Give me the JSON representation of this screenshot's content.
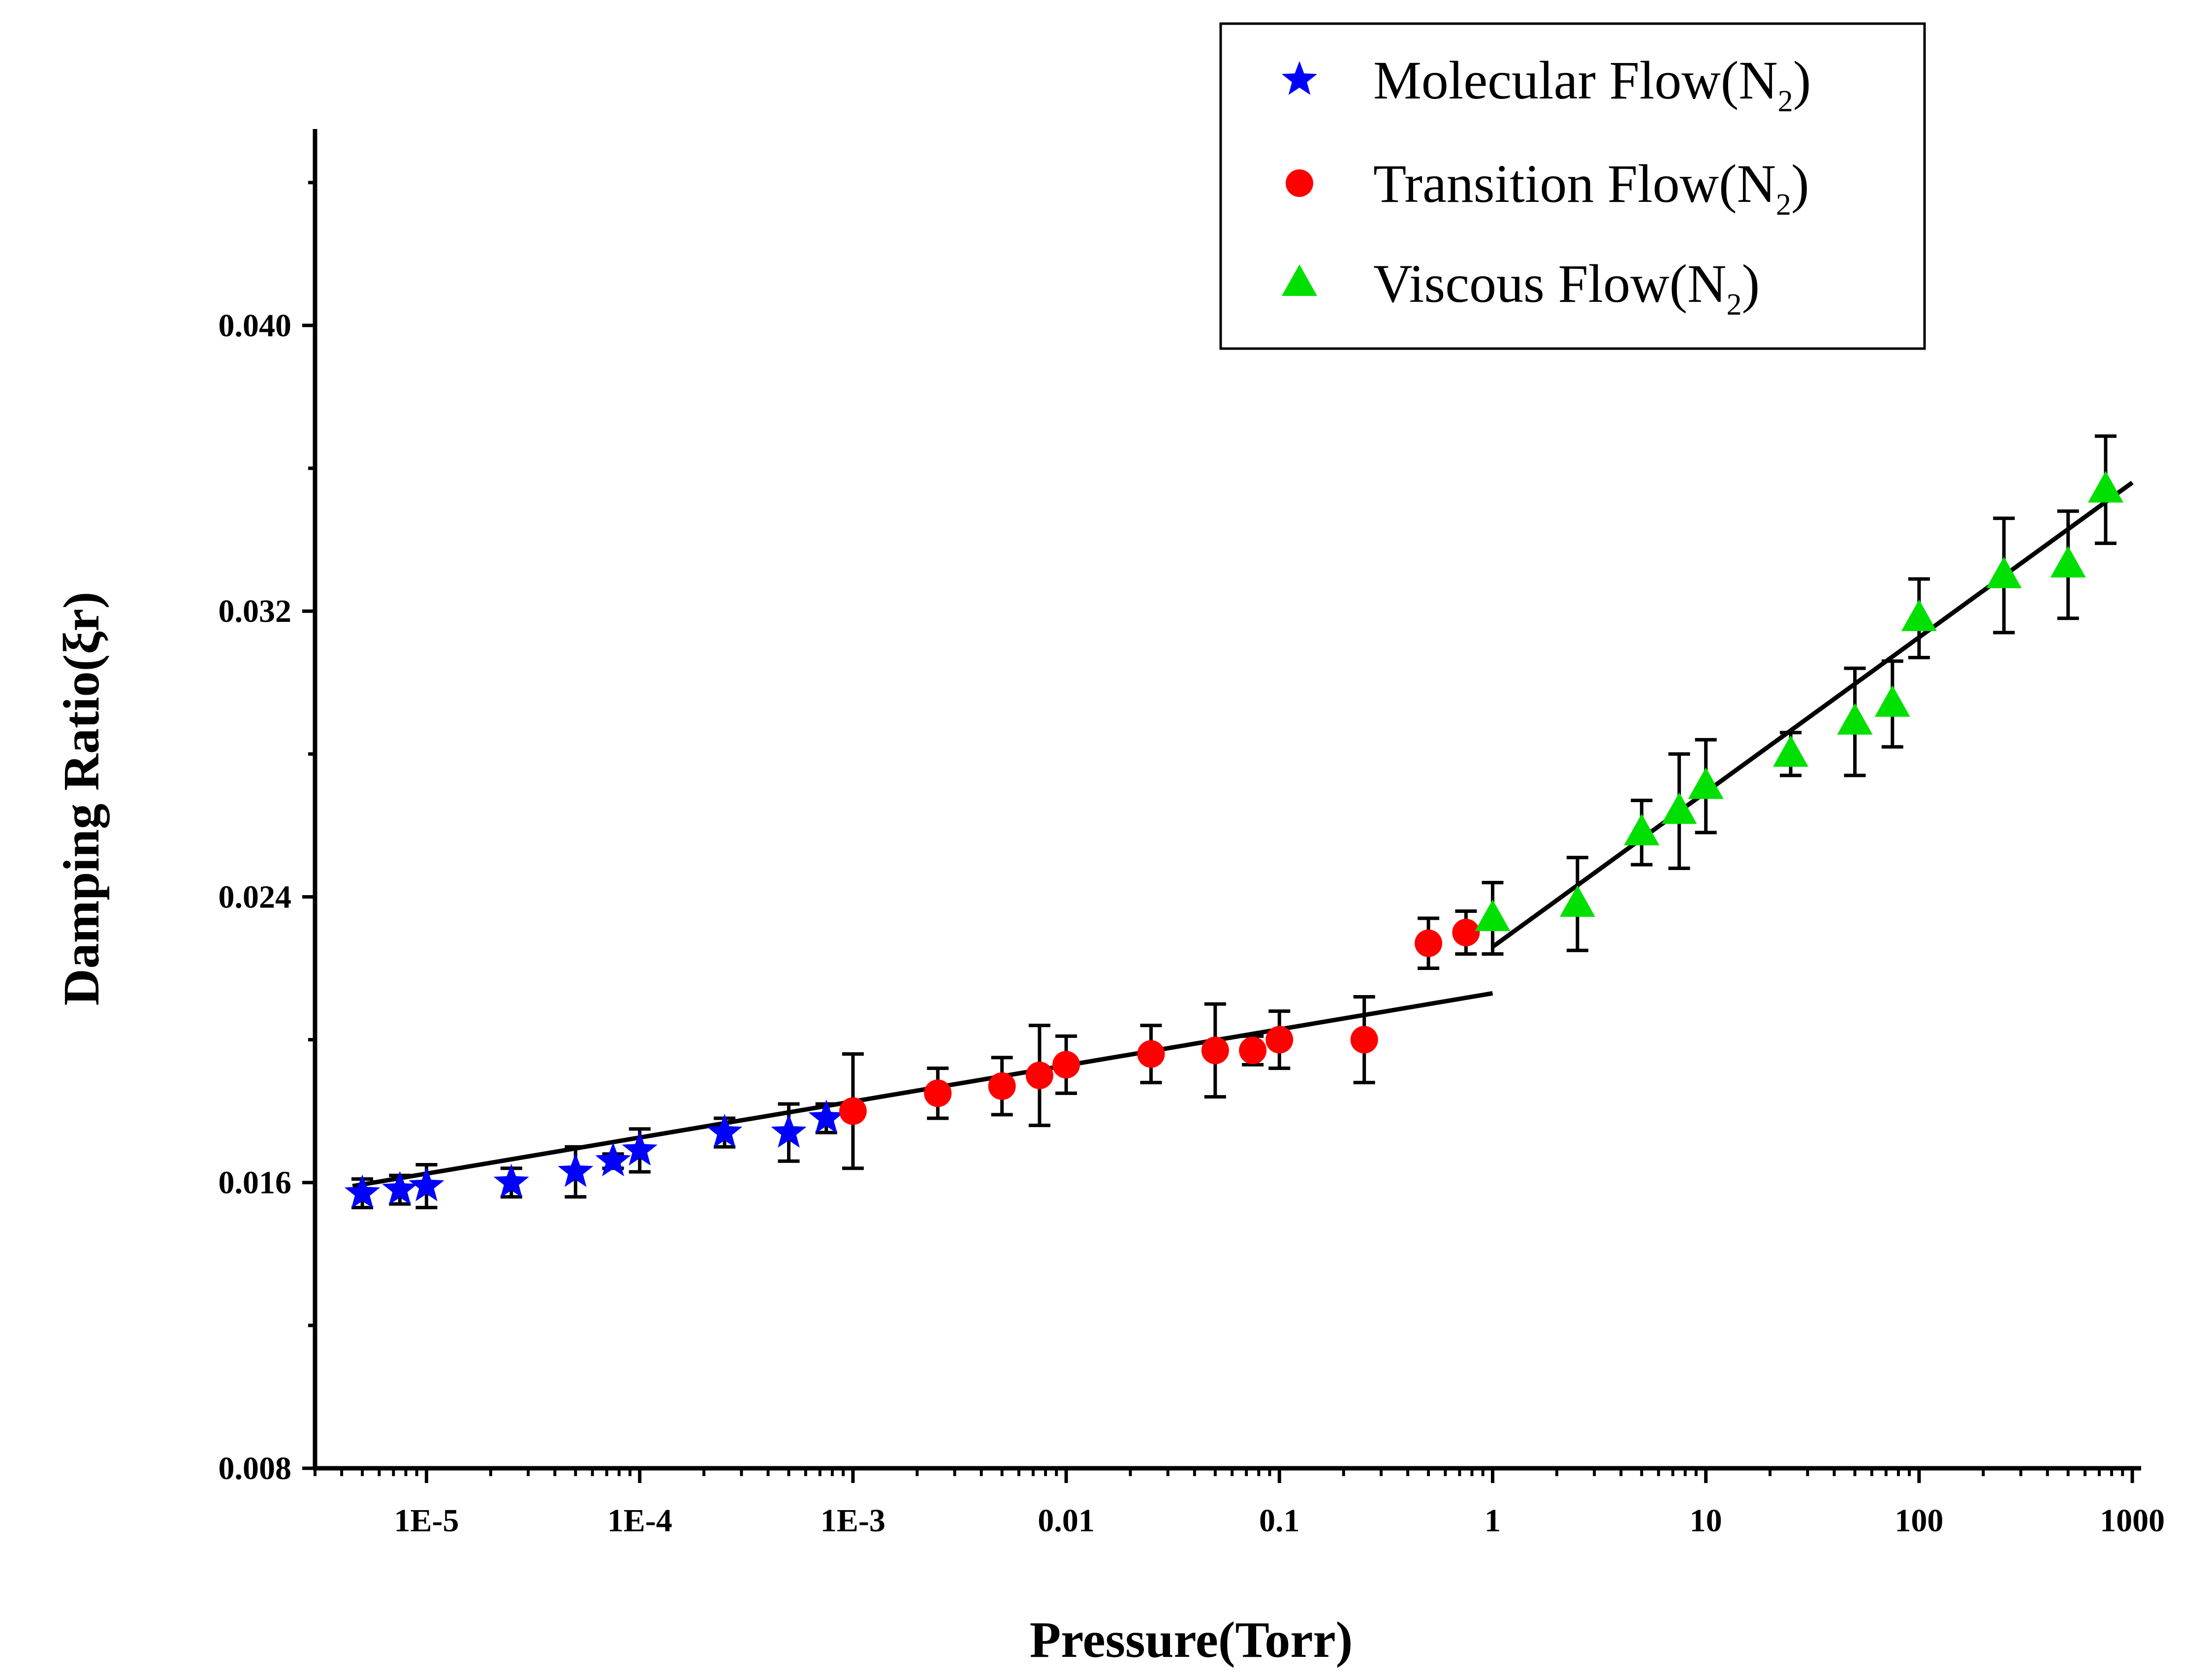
{
  "chart_data": {
    "type": "scatter",
    "x_scale": "log",
    "xlabel": "Pressure(Torr)",
    "ylabel": "Damping Ratio(ξr)",
    "xlim": [
      3e-06,
      1100
    ],
    "ylim": [
      0.008,
      0.0455
    ],
    "y_ticks": [
      0.008,
      0.016,
      0.024,
      0.032,
      0.04
    ],
    "y_tick_labels": [
      "0.008",
      "0.016",
      "0.024",
      "0.032",
      "0.040"
    ],
    "x_ticks": [
      1e-05,
      0.0001,
      0.001,
      0.01,
      0.1,
      1,
      10,
      100,
      1000
    ],
    "x_tick_labels": [
      "1E-5",
      "1E-4",
      "1E-3",
      "0.01",
      "0.1",
      "1",
      "10",
      "100",
      "1000"
    ],
    "legend_position": "top-right",
    "series": [
      {
        "name": "Molecular Flow(N2)",
        "legend_main": "Molecular Flow(N",
        "legend_sub": "2",
        "legend_close": ")",
        "marker": "star",
        "color": "#0000ff",
        "points": [
          {
            "x": 5e-06,
            "y": 0.0157,
            "err": 0.0004
          },
          {
            "x": 7.5e-06,
            "y": 0.0158,
            "err": 0.0004
          },
          {
            "x": 1e-05,
            "y": 0.0159,
            "err": 0.0006
          },
          {
            "x": 2.5e-05,
            "y": 0.016,
            "err": 0.0004
          },
          {
            "x": 5e-05,
            "y": 0.0163,
            "err": 0.0007
          },
          {
            "x": 7.5e-05,
            "y": 0.0166,
            "err": 0.0002
          },
          {
            "x": 0.0001,
            "y": 0.0169,
            "err": 0.0006
          },
          {
            "x": 0.00025,
            "y": 0.0174,
            "err": 0.0004
          },
          {
            "x": 0.0005,
            "y": 0.0174,
            "err": 0.0008
          },
          {
            "x": 0.00075,
            "y": 0.0178,
            "err": 0.0004
          }
        ]
      },
      {
        "name": "Transition Flow(N2)",
        "legend_main": "Transition Flow(N",
        "legend_sub": "2",
        "legend_close": ")",
        "marker": "circle",
        "color": "#ff0000",
        "points": [
          {
            "x": 0.001,
            "y": 0.018,
            "err": 0.0016
          },
          {
            "x": 0.0025,
            "y": 0.0185,
            "err": 0.0007
          },
          {
            "x": 0.005,
            "y": 0.0187,
            "err": 0.0008
          },
          {
            "x": 0.0075,
            "y": 0.019,
            "err": 0.0014
          },
          {
            "x": 0.01,
            "y": 0.0193,
            "err": 0.0008
          },
          {
            "x": 0.025,
            "y": 0.0196,
            "err": 0.0008
          },
          {
            "x": 0.05,
            "y": 0.0197,
            "err": 0.0013
          },
          {
            "x": 0.075,
            "y": 0.0197,
            "err": 0.0004
          },
          {
            "x": 0.1,
            "y": 0.02,
            "err": 0.0008
          },
          {
            "x": 0.25,
            "y": 0.02,
            "err": 0.0012
          },
          {
            "x": 0.5,
            "y": 0.0227,
            "err": 0.0007
          },
          {
            "x": 0.75,
            "y": 0.023,
            "err": 0.0006
          }
        ]
      },
      {
        "name": "Viscous Flow(N2)",
        "legend_main": "Viscous Flow(N",
        "legend_sub": "2",
        "legend_close": ")",
        "marker": "triangle",
        "color": "#00e000",
        "points": [
          {
            "x": 1,
            "y": 0.0234,
            "err": 0.001
          },
          {
            "x": 2.5,
            "y": 0.0238,
            "err": 0.0013
          },
          {
            "x": 5,
            "y": 0.0258,
            "err": 0.0009
          },
          {
            "x": 7.5,
            "y": 0.0264,
            "err": 0.0016
          },
          {
            "x": 10,
            "y": 0.0271,
            "err": 0.0013
          },
          {
            "x": 25,
            "y": 0.028,
            "err": 0.0006
          },
          {
            "x": 50,
            "y": 0.0289,
            "err": 0.0015
          },
          {
            "x": 75,
            "y": 0.0294,
            "err": 0.0012
          },
          {
            "x": 100,
            "y": 0.0318,
            "err": 0.0011
          },
          {
            "x": 250,
            "y": 0.033,
            "err": 0.0016
          },
          {
            "x": 500,
            "y": 0.0333,
            "err": 0.0015
          },
          {
            "x": 750,
            "y": 0.0354,
            "err": 0.0015
          }
        ]
      }
    ],
    "fit_lines": [
      {
        "name": "fit-low-pressure",
        "x": [
          4.5e-06,
          1
        ],
        "y": [
          0.0159,
          0.0213
        ]
      },
      {
        "name": "fit-high-pressure",
        "x": [
          1,
          1000
        ],
        "y": [
          0.0226,
          0.0356
        ]
      }
    ]
  }
}
